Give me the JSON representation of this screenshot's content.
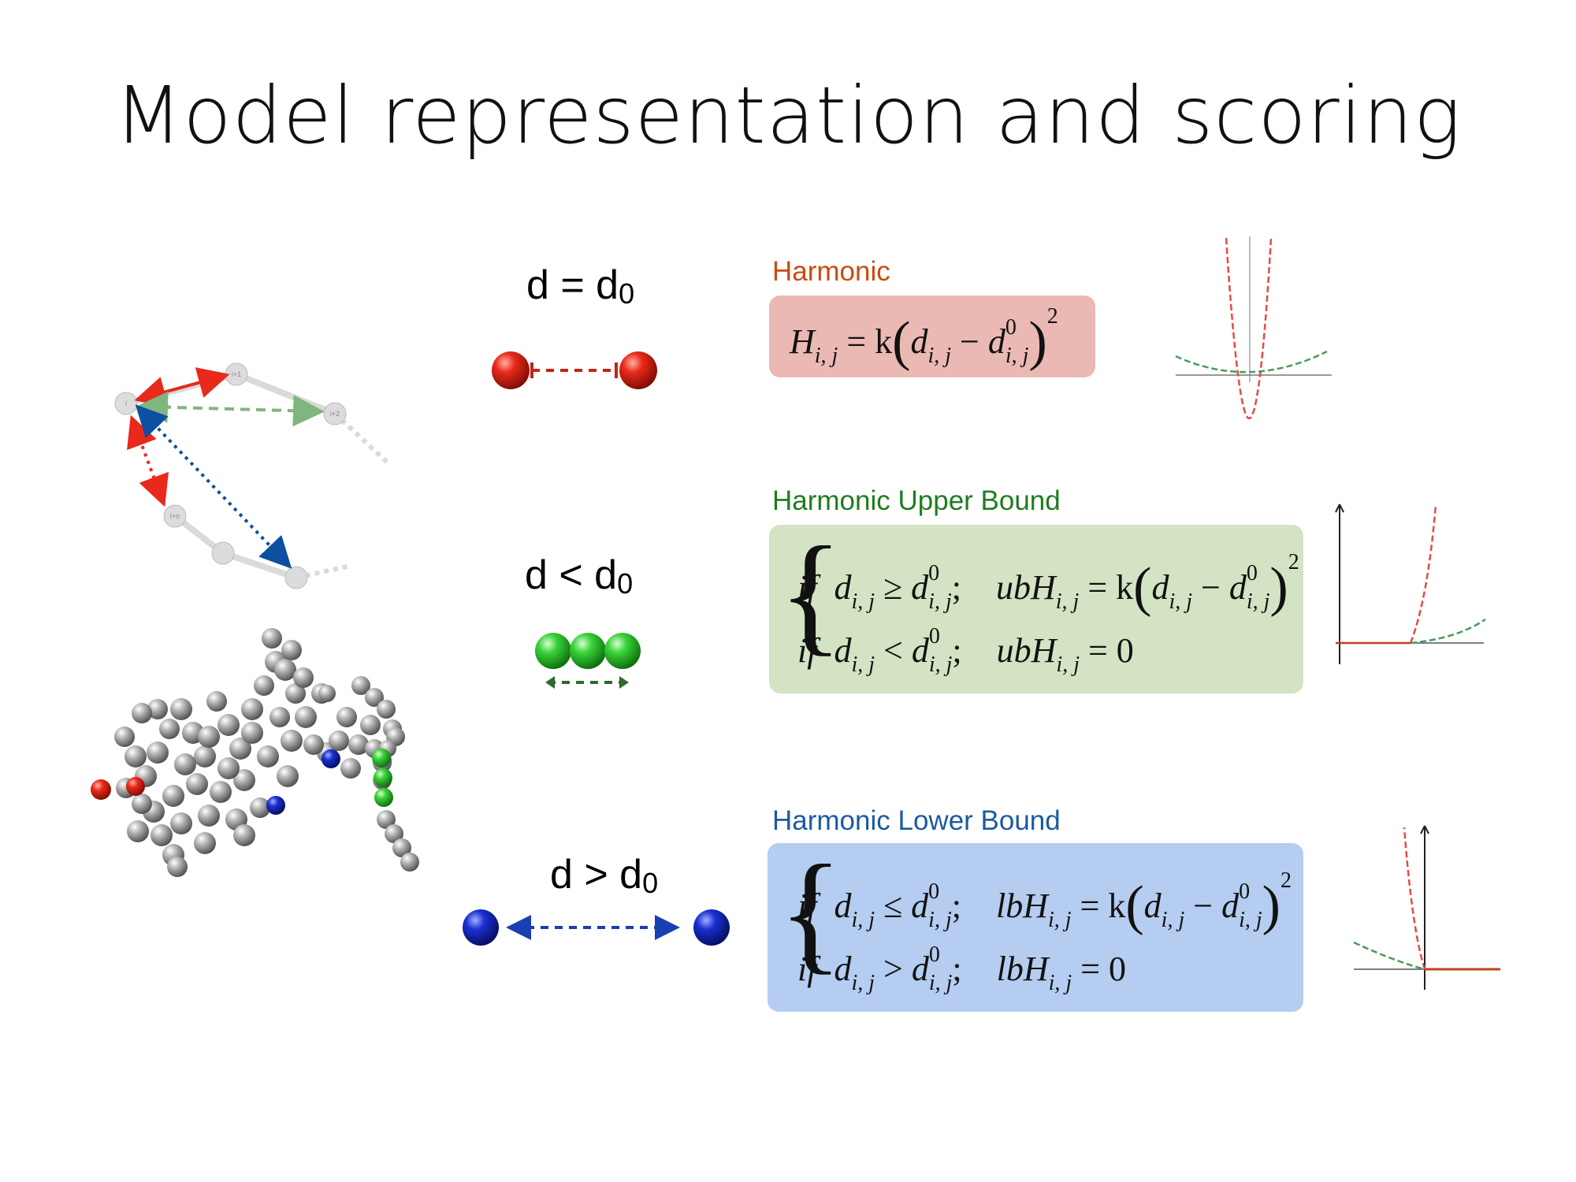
{
  "title": "Model representation and scoring",
  "conditions": {
    "eq": {
      "main": "d = d",
      "sub": "0"
    },
    "lt": {
      "main": "d < d",
      "sub": "0"
    },
    "gt": {
      "main": "d > d",
      "sub": "0"
    }
  },
  "sections": {
    "harmonic": {
      "label": "Harmonic",
      "color": "#cc4a12",
      "box_color": "#eab9b3"
    },
    "upper": {
      "label": "Harmonic Upper Bound",
      "color": "#1e7d1e",
      "box_color": "#d3e3c3"
    },
    "lower": {
      "label": "Harmonic Lower Bound",
      "color": "#1b5aa0",
      "box_color": "#b4cdf0"
    }
  },
  "formulas": {
    "harmonic": {
      "lhs": "H",
      "lhs_sub": "i, j",
      "eq": "= k",
      "d": "d",
      "d_sub": "i, j",
      "minus": "−",
      "d0": "d",
      "d0_sup": "0",
      "d0_sub": "i, j",
      "exp": "2"
    },
    "upper": {
      "if1": "if",
      "cond1": "≥",
      "name": "ubH",
      "eq": "= k",
      "minus": "−",
      "exp": "2",
      "if2": "if",
      "cond2": "<",
      "zero": "= 0"
    },
    "lower": {
      "if1": "if",
      "cond1": "≤",
      "name": "lbH",
      "eq": "= k",
      "minus": "−",
      "exp": "2",
      "if2": "if",
      "cond2": ">",
      "zero": "= 0"
    }
  },
  "chain_nodes": [
    "i",
    "i+1",
    "i+2",
    "i+n"
  ],
  "colors": {
    "red": "#e8291c",
    "green": "#3ad23a",
    "blue": "#1a2fd0",
    "gray": "#9a9a9a"
  }
}
